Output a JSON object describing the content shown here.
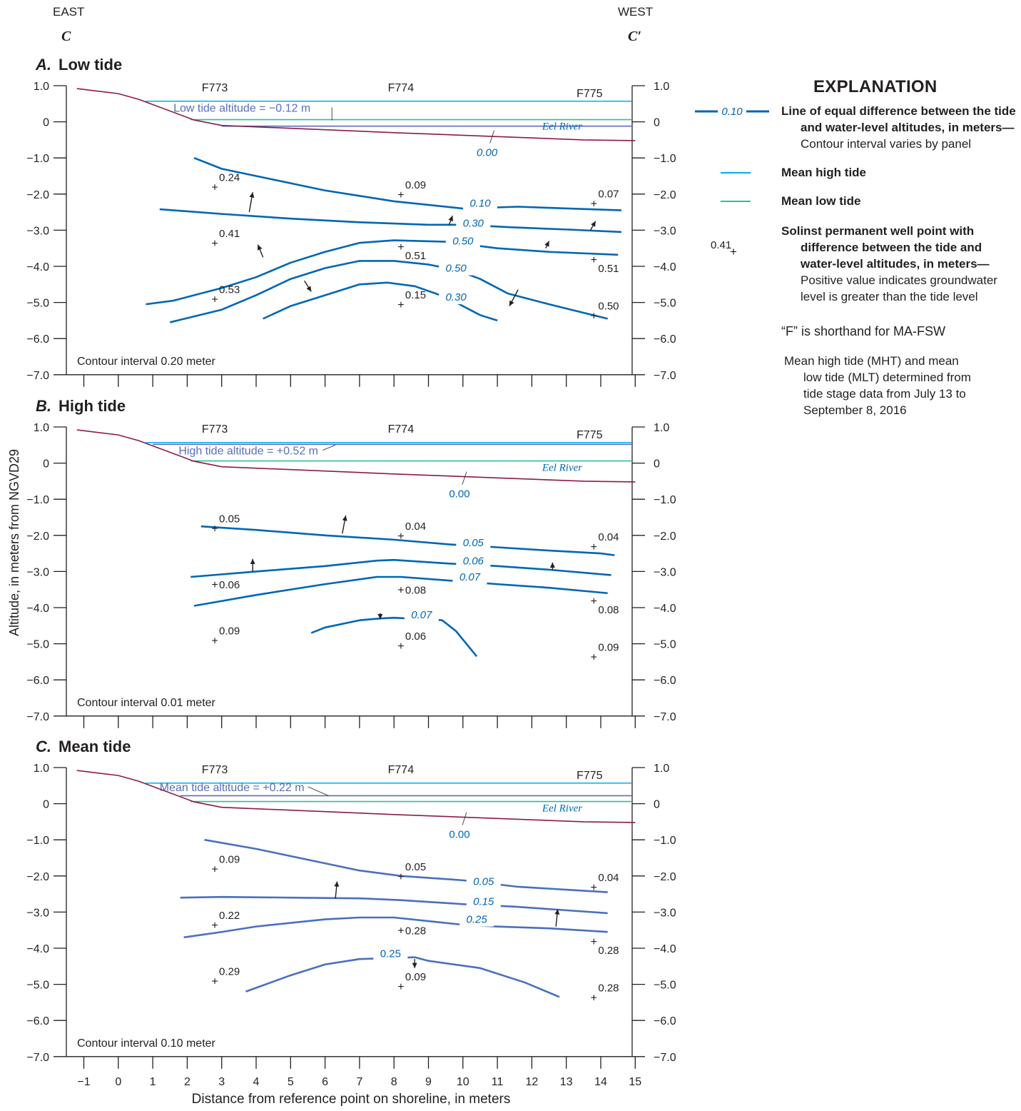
{
  "header": {
    "east_label": "EAST",
    "west_label": "WEST",
    "section_start": "C",
    "section_end": "C′"
  },
  "axes": {
    "y_label": "Altitude, in meters from NGVD29",
    "x_label": "Distance from reference point on shoreline, in meters",
    "y_ticks": [
      "1.0",
      "0",
      "−1.0",
      "−2.0",
      "−3.0",
      "−4.0",
      "−5.0",
      "−6.0",
      "−7.0"
    ],
    "x_ticks": [
      "−1",
      "0",
      "1",
      "2",
      "3",
      "4",
      "5",
      "6",
      "7",
      "8",
      "9",
      "10",
      "11",
      "12",
      "13",
      "14",
      "15"
    ]
  },
  "colors": {
    "contour": "#0066b3",
    "contour_mean": "#4a6fbf",
    "mean_high_tide": "#00aeef",
    "mean_low_tide": "#2ebf91",
    "tide_line": "#5a6ebe",
    "ground_surface": "#8b1a4a",
    "text": "#231f20"
  },
  "chart_data": {
    "type": "cross-section",
    "xlim": [
      -1.5,
      15
    ],
    "ylim": [
      -7,
      1
    ],
    "ground_surface": [
      [
        -1.2,
        0.92
      ],
      [
        0,
        0.78
      ],
      [
        0.6,
        0.62
      ],
      [
        2.2,
        0.05
      ],
      [
        3,
        -0.1
      ],
      [
        8,
        -0.3
      ],
      [
        13.5,
        -0.5
      ],
      [
        15,
        -0.52
      ]
    ],
    "wells": [
      {
        "name": "F773",
        "x": 2.8
      },
      {
        "name": "F774",
        "x": 8.2
      },
      {
        "name": "F775",
        "x": 13.8
      }
    ],
    "panels": [
      {
        "letter": "A.",
        "title": "Low tide",
        "contour_interval": "Contour interval 0.20 meter",
        "tide_label": "Low tide altitude = −0.12 m",
        "tide_altitude": -0.12,
        "mean_high_tide": 0.57,
        "mean_low_tide": 0.06,
        "river_label": "Eel River",
        "zero_label": "0.00",
        "contours": [
          {
            "label": "0.10",
            "pts": [
              [
                2.2,
                -1.0
              ],
              [
                3,
                -1.3
              ],
              [
                4,
                -1.5
              ],
              [
                5,
                -1.7
              ],
              [
                6,
                -1.9
              ],
              [
                7,
                -2.05
              ],
              [
                8,
                -2.2
              ],
              [
                9,
                -2.3
              ],
              [
                10,
                -2.4
              ],
              [
                11.6,
                -2.35
              ],
              [
                12.5,
                -2.38
              ],
              [
                14.6,
                -2.45
              ]
            ]
          },
          {
            "label": "0.30",
            "pts": [
              [
                1.2,
                -2.42
              ],
              [
                3,
                -2.55
              ],
              [
                5,
                -2.68
              ],
              [
                7,
                -2.78
              ],
              [
                9,
                -2.85
              ],
              [
                10,
                -2.85
              ],
              [
                11.4,
                -2.92
              ],
              [
                13,
                -2.98
              ],
              [
                14.6,
                -3.05
              ]
            ]
          },
          {
            "label": "0.50",
            "pts": [
              [
                0.8,
                -5.05
              ],
              [
                1.6,
                -4.95
              ],
              [
                3,
                -4.6
              ],
              [
                4,
                -4.3
              ],
              [
                5,
                -3.9
              ],
              [
                6,
                -3.6
              ],
              [
                7,
                -3.35
              ],
              [
                8,
                -3.28
              ],
              [
                9.5,
                -3.32
              ],
              [
                11,
                -3.5
              ],
              [
                12.5,
                -3.6
              ],
              [
                14.5,
                -3.68
              ]
            ]
          },
          {
            "label": "0.50",
            "pts": [
              [
                1.5,
                -5.55
              ],
              [
                3,
                -5.2
              ],
              [
                4,
                -4.8
              ],
              [
                5,
                -4.35
              ],
              [
                6,
                -4.05
              ],
              [
                7,
                -3.85
              ],
              [
                8,
                -3.85
              ],
              [
                9,
                -3.95
              ],
              [
                9.8,
                -4.1
              ],
              [
                10.5,
                -4.35
              ],
              [
                11.3,
                -4.75
              ],
              [
                12.5,
                -5.05
              ],
              [
                14.2,
                -5.45
              ]
            ]
          },
          {
            "label": "0.30",
            "pts": [
              [
                4.2,
                -5.45
              ],
              [
                5,
                -5.1
              ],
              [
                6,
                -4.8
              ],
              [
                7,
                -4.5
              ],
              [
                7.8,
                -4.45
              ],
              [
                8.6,
                -4.55
              ],
              [
                9.5,
                -4.85
              ],
              [
                10.5,
                -5.35
              ],
              [
                11,
                -5.5
              ]
            ]
          }
        ],
        "contour_label_positions": [
          [
            10.5,
            -2.35
          ],
          [
            10.3,
            -2.9
          ],
          [
            10,
            -3.4
          ],
          [
            9.8,
            -4.15
          ],
          [
            9.8,
            -4.95
          ]
        ],
        "zero_pos": [
          10.7,
          -0.95
        ],
        "points": [
          {
            "value": "0.24",
            "x": 2.8,
            "y": -1.8
          },
          {
            "value": "0.09",
            "x": 8.2,
            "y": -2.0
          },
          {
            "value": "0.07",
            "x": 13.8,
            "y": -2.25
          },
          {
            "value": "0.41",
            "x": 2.8,
            "y": -3.35
          },
          {
            "value": "0.51",
            "x": 8.2,
            "y": -3.45
          },
          {
            "value": "0.51",
            "x": 13.8,
            "y": -3.8
          },
          {
            "value": "0.53",
            "x": 2.8,
            "y": -4.9
          },
          {
            "value": "0.15",
            "x": 8.2,
            "y": -5.05
          },
          {
            "value": "0.50",
            "x": 13.8,
            "y": -5.35
          }
        ]
      },
      {
        "letter": "B.",
        "title": "High tide",
        "contour_interval": "Contour interval 0.01 meter",
        "tide_label": "High tide altitude = +0.52 m",
        "tide_altitude": 0.52,
        "mean_high_tide": 0.57,
        "mean_low_tide": 0.06,
        "river_label": "Eel River",
        "zero_label": "0.00",
        "contours": [
          {
            "label": "0.05",
            "pts": [
              [
                2.4,
                -1.75
              ],
              [
                4,
                -1.85
              ],
              [
                6,
                -2.0
              ],
              [
                8,
                -2.12
              ],
              [
                9.6,
                -2.25
              ],
              [
                11,
                -2.33
              ],
              [
                12.5,
                -2.42
              ],
              [
                14,
                -2.5
              ],
              [
                14.4,
                -2.55
              ]
            ]
          },
          {
            "label": "0.06",
            "pts": [
              [
                2.1,
                -3.15
              ],
              [
                4,
                -3.0
              ],
              [
                6,
                -2.85
              ],
              [
                7.5,
                -2.7
              ],
              [
                8,
                -2.68
              ],
              [
                9.6,
                -2.78
              ],
              [
                11,
                -2.85
              ],
              [
                12.5,
                -2.95
              ],
              [
                14.3,
                -3.1
              ]
            ]
          },
          {
            "label": "0.07",
            "pts": [
              [
                2.2,
                -3.95
              ],
              [
                4,
                -3.65
              ],
              [
                6,
                -3.35
              ],
              [
                7.5,
                -3.15
              ],
              [
                8.2,
                -3.15
              ],
              [
                9.6,
                -3.25
              ],
              [
                11,
                -3.35
              ],
              [
                12.5,
                -3.45
              ],
              [
                14.2,
                -3.6
              ]
            ]
          },
          {
            "label": "0.07",
            "pts": [
              [
                5.6,
                -4.7
              ],
              [
                6,
                -4.55
              ],
              [
                7,
                -4.35
              ],
              [
                7.6,
                -4.3
              ],
              [
                8,
                -4.28
              ],
              [
                9.4,
                -4.35
              ],
              [
                9.8,
                -4.65
              ],
              [
                10.4,
                -5.35
              ]
            ]
          }
        ],
        "contour_label_positions": [
          [
            10.3,
            -2.3
          ],
          [
            10.3,
            -2.8
          ],
          [
            10.2,
            -3.25
          ],
          [
            8.8,
            -4.3
          ]
        ],
        "zero_pos": [
          9.9,
          -0.95
        ],
        "points": [
          {
            "value": "0.05",
            "x": 2.8,
            "y": -1.8
          },
          {
            "value": "0.04",
            "x": 8.2,
            "y": -2.0
          },
          {
            "value": "0.04",
            "x": 13.8,
            "y": -2.3
          },
          {
            "value": "0.06",
            "x": 2.8,
            "y": -3.35
          },
          {
            "value": "0.08",
            "x": 8.2,
            "y": -3.5
          },
          {
            "value": "0.08",
            "x": 13.8,
            "y": -3.8
          },
          {
            "value": "0.09",
            "x": 2.8,
            "y": -4.9
          },
          {
            "value": "0.06",
            "x": 8.2,
            "y": -5.05
          },
          {
            "value": "0.09",
            "x": 13.8,
            "y": -5.35
          }
        ]
      },
      {
        "letter": "C.",
        "title": "Mean tide",
        "contour_interval": "Contour interval 0.10 meter",
        "tide_label": "Mean tide altitude = +0.22 m",
        "tide_altitude": 0.22,
        "mean_high_tide": 0.57,
        "mean_low_tide": 0.06,
        "river_label": "Eel River",
        "zero_label": "0.00",
        "contours": [
          {
            "label": "0.05",
            "pts": [
              [
                2.5,
                -1.0
              ],
              [
                4,
                -1.25
              ],
              [
                5,
                -1.45
              ],
              [
                6,
                -1.65
              ],
              [
                7,
                -1.85
              ],
              [
                8.2,
                -2.0
              ],
              [
                10,
                -2.12
              ],
              [
                11.6,
                -2.3
              ],
              [
                13,
                -2.38
              ],
              [
                14.2,
                -2.45
              ]
            ]
          },
          {
            "label": "0.15",
            "pts": [
              [
                1.8,
                -2.6
              ],
              [
                3,
                -2.58
              ],
              [
                5,
                -2.6
              ],
              [
                7,
                -2.62
              ],
              [
                8.2,
                -2.67
              ],
              [
                10,
                -2.78
              ],
              [
                11.5,
                -2.85
              ],
              [
                13,
                -2.95
              ],
              [
                14.2,
                -3.03
              ]
            ]
          },
          {
            "label": "0.25",
            "pts": [
              [
                1.9,
                -3.7
              ],
              [
                3,
                -3.55
              ],
              [
                4,
                -3.4
              ],
              [
                5,
                -3.3
              ],
              [
                6,
                -3.2
              ],
              [
                7,
                -3.15
              ],
              [
                8,
                -3.15
              ],
              [
                9,
                -3.25
              ],
              [
                10,
                -3.35
              ],
              [
                11,
                -3.4
              ],
              [
                12.5,
                -3.45
              ],
              [
                14.2,
                -3.55
              ]
            ]
          },
          {
            "label": "0.25",
            "pts": [
              [
                3.7,
                -5.2
              ],
              [
                5,
                -4.75
              ],
              [
                6,
                -4.45
              ],
              [
                7,
                -4.3
              ],
              [
                8.6,
                -4.25
              ],
              [
                9,
                -4.35
              ],
              [
                10.5,
                -4.55
              ],
              [
                11.8,
                -4.95
              ],
              [
                12.8,
                -5.35
              ]
            ]
          }
        ],
        "contour_label_positions": [
          [
            10.6,
            -2.25
          ],
          [
            10.6,
            -2.8
          ],
          [
            10.4,
            -3.3
          ],
          [
            7.9,
            -4.25
          ]
        ],
        "zero_pos": [
          9.9,
          -0.95
        ],
        "points": [
          {
            "value": "0.09",
            "x": 2.8,
            "y": -1.8
          },
          {
            "value": "0.05",
            "x": 8.2,
            "y": -2.0
          },
          {
            "value": "0.04",
            "x": 13.8,
            "y": -2.3
          },
          {
            "value": "0.22",
            "x": 2.8,
            "y": -3.35
          },
          {
            "value": "0.28",
            "x": 8.2,
            "y": -3.5
          },
          {
            "value": "0.28",
            "x": 13.8,
            "y": -3.8
          },
          {
            "value": "0.29",
            "x": 2.8,
            "y": -4.9
          },
          {
            "value": "0.09",
            "x": 8.2,
            "y": -5.05
          },
          {
            "value": "0.28",
            "x": 13.8,
            "y": -5.35
          }
        ]
      }
    ]
  },
  "explanation": {
    "title": "EXPLANATION",
    "contour_sample": "0.10",
    "contour_bold_1": "Line of equal difference between the tide",
    "contour_bold_2": "and water-level altitudes, in meters—",
    "contour_normal": "Contour interval varies by panel",
    "mht": "Mean high tide",
    "mlt": "Mean low tide",
    "well_sample": "0.41",
    "well_bold_1": "Solinst permanent well point with",
    "well_bold_2": "difference between the tide and",
    "well_bold_3": "water-level altitudes, in meters—",
    "well_normal_1": "Positive value indicates groundwater",
    "well_normal_2": "level is greater than the tide level",
    "f_note": "“F” is shorthand for MA-FSW",
    "mht_note_1": "Mean high tide (MHT) and mean",
    "mht_note_2": "low tide (MLT) determined from",
    "mht_note_3": "tide stage data from July 13 to",
    "mht_note_4": "September 8, 2016"
  }
}
